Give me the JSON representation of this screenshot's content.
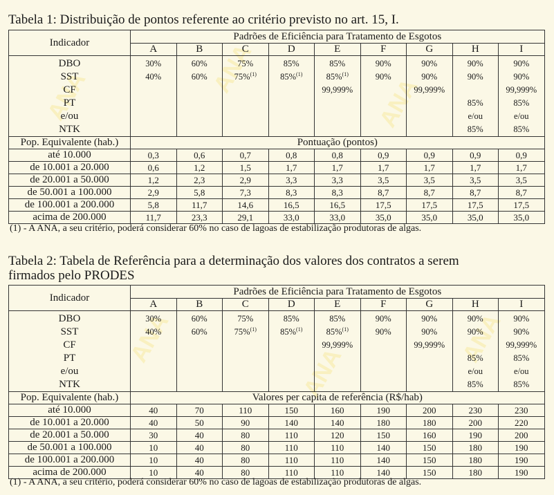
{
  "tables": [
    {
      "title": "Tabela 1: Distribuição de pontos referente ao critério previsto no art. 15, I.",
      "indicator_header": "Indicador",
      "group_header": "Padrões de Eficiência para Tratamento de Esgotos",
      "columns": [
        "A",
        "B",
        "C",
        "D",
        "E",
        "F",
        "G",
        "H",
        "I"
      ],
      "indicators": [
        "DBO",
        "SST",
        "CF",
        "PT",
        "e/ou",
        "NTK"
      ],
      "indicator_values": [
        [
          "30%",
          "60%",
          "75%",
          "85%",
          "85%",
          "90%",
          "90%",
          "90%",
          "90%"
        ],
        [
          "40%",
          "60%",
          "75%",
          "85%",
          "85%",
          "90%",
          "90%",
          "90%",
          "90%"
        ],
        [
          "",
          "",
          "",
          "",
          "99,999%",
          "",
          "99,999%",
          "",
          "99,999%"
        ],
        [
          "",
          "",
          "",
          "",
          "",
          "",
          "",
          "85%",
          "85%"
        ],
        [
          "",
          "",
          "",
          "",
          "",
          "",
          "",
          "e/ou",
          "e/ou"
        ],
        [
          "",
          "",
          "",
          "",
          "",
          "",
          "",
          "85%",
          "85%"
        ]
      ],
      "sst_notes": [
        "",
        "",
        "(1)",
        "(1)",
        "(1)",
        "",
        "",
        "",
        ""
      ],
      "pop_header": "Pop. Equivalente (hab.)",
      "values_header": "Pontuação (pontos)",
      "rows": [
        {
          "label": "até 10.000",
          "values": [
            "0,3",
            "0,6",
            "0,7",
            "0,8",
            "0,8",
            "0,9",
            "0,9",
            "0,9",
            "0,9"
          ]
        },
        {
          "label": "de 10.001 a 20.000",
          "values": [
            "0,6",
            "1,2",
            "1,5",
            "1,7",
            "1,7",
            "1,7",
            "1,7",
            "1,7",
            "1,7"
          ]
        },
        {
          "label": "de 20.001 a 50.000",
          "values": [
            "1,2",
            "2,3",
            "2,9",
            "3,3",
            "3,3",
            "3,5",
            "3,5",
            "3,5",
            "3,5"
          ]
        },
        {
          "label": "de 50.001 a 100.000",
          "values": [
            "2,9",
            "5,8",
            "7,3",
            "8,3",
            "8,3",
            "8,7",
            "8,7",
            "8,7",
            "8,7"
          ]
        },
        {
          "label": "de 100.001 a 200.000",
          "values": [
            "5,8",
            "11,7",
            "14,6",
            "16,5",
            "16,5",
            "17,5",
            "17,5",
            "17,5",
            "17,5"
          ]
        },
        {
          "label": "acima de 200.000",
          "values": [
            "11,7",
            "23,3",
            "29,1",
            "33,0",
            "33,0",
            "35,0",
            "35,0",
            "35,0",
            "35,0"
          ]
        }
      ],
      "footnote": "(1) - A ANA, a seu critério, poderá considerar 60% no caso de lagoas de estabilização produtoras de algas."
    },
    {
      "title": "Tabela 2: Tabela de Referência para a determinação dos valores dos contratos a serem firmados pelo PRODES",
      "indicator_header": "Indicador",
      "group_header": "Padrões de Eficiência para Tratamento de Esgotos",
      "columns": [
        "A",
        "B",
        "C",
        "D",
        "E",
        "F",
        "G",
        "H",
        "I"
      ],
      "indicators": [
        "DBO",
        "SST",
        "CF",
        "PT",
        "e/ou",
        "NTK"
      ],
      "indicator_values": [
        [
          "30%",
          "60%",
          "75%",
          "85%",
          "85%",
          "90%",
          "90%",
          "90%",
          "90%"
        ],
        [
          "40%",
          "60%",
          "75%",
          "85%",
          "85%",
          "90%",
          "90%",
          "90%",
          "90%"
        ],
        [
          "",
          "",
          "",
          "",
          "99,999%",
          "",
          "99,999%",
          "",
          "99,999%"
        ],
        [
          "",
          "",
          "",
          "",
          "",
          "",
          "",
          "85%",
          "85%"
        ],
        [
          "",
          "",
          "",
          "",
          "",
          "",
          "",
          "e/ou",
          "e/ou"
        ],
        [
          "",
          "",
          "",
          "",
          "",
          "",
          "",
          "85%",
          "85%"
        ]
      ],
      "sst_notes": [
        "",
        "",
        "(1)",
        "(1)",
        "(1)",
        "",
        "",
        "",
        ""
      ],
      "pop_header": "Pop. Equivalente (hab.)",
      "values_header": "Valores per capita de referência (R$/hab)",
      "rows": [
        {
          "label": "até 10.000",
          "values": [
            "40",
            "70",
            "110",
            "150",
            "160",
            "190",
            "200",
            "230",
            "230"
          ]
        },
        {
          "label": "de 10.001 a 20.000",
          "values": [
            "40",
            "50",
            "90",
            "140",
            "140",
            "180",
            "180",
            "200",
            "220"
          ]
        },
        {
          "label": "de 20.001 a 50.000",
          "values": [
            "30",
            "40",
            "80",
            "110",
            "120",
            "150",
            "160",
            "190",
            "200"
          ]
        },
        {
          "label": "de 50.001 a 100.000",
          "values": [
            "10",
            "40",
            "80",
            "110",
            "110",
            "140",
            "150",
            "180",
            "190"
          ]
        },
        {
          "label": "de 100.001 a 200.000",
          "values": [
            "10",
            "40",
            "80",
            "110",
            "110",
            "140",
            "150",
            "180",
            "190"
          ]
        },
        {
          "label": "acima de 200.000",
          "values": [
            "10",
            "40",
            "80",
            "110",
            "110",
            "140",
            "150",
            "180",
            "190"
          ]
        }
      ],
      "footnote": "(1) - A ANA, a seu critério, poderá considerar 60% no caso de lagoas de estabilização produtoras de algas."
    }
  ]
}
